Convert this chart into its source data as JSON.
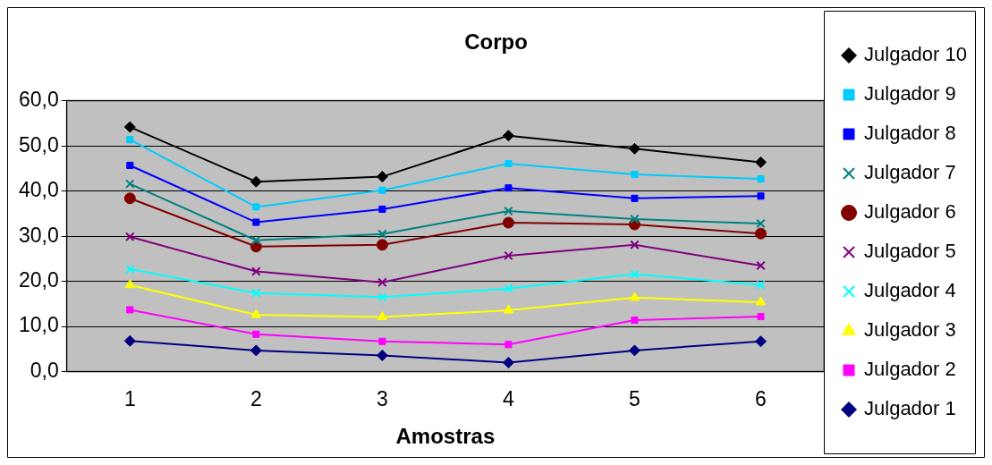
{
  "chart_data": {
    "type": "line",
    "title": "Corpo",
    "xlabel": "Amostras",
    "categories": [
      "1",
      "2",
      "3",
      "4",
      "5",
      "6"
    ],
    "ylim": [
      0,
      60
    ],
    "yticks": [
      {
        "value": 0,
        "label": "0,0"
      },
      {
        "value": 10,
        "label": "10,0"
      },
      {
        "value": 20,
        "label": "20,0"
      },
      {
        "value": 30,
        "label": "30,0"
      },
      {
        "value": 40,
        "label": "40,0"
      },
      {
        "value": 50,
        "label": "50,0"
      },
      {
        "value": 60,
        "label": "60,0"
      }
    ],
    "grid": "y",
    "legend": "right",
    "line_style": "solid",
    "series": [
      {
        "name": "Julgador 10",
        "color": "#000000",
        "marker": "diamond",
        "values": [
          54.2,
          42.1,
          43.2,
          52.3,
          49.4,
          46.4
        ]
      },
      {
        "name": "Julgador 9",
        "color": "#00ccff",
        "marker": "square",
        "values": [
          51.4,
          36.5,
          40.2,
          46.1,
          43.7,
          42.7
        ]
      },
      {
        "name": "Julgador 8",
        "color": "#0000ff",
        "marker": "square",
        "values": [
          45.7,
          33.1,
          36.0,
          40.7,
          38.4,
          38.9
        ]
      },
      {
        "name": "Julgador 7",
        "color": "#008080",
        "marker": "cross",
        "values": [
          41.6,
          29.1,
          30.5,
          35.6,
          33.8,
          32.8
        ]
      },
      {
        "name": "Julgador 6",
        "color": "#800000",
        "marker": "circle",
        "values": [
          38.4,
          27.7,
          28.1,
          33.0,
          32.6,
          30.6
        ]
      },
      {
        "name": "Julgador 5",
        "color": "#800080",
        "marker": "cross",
        "values": [
          29.9,
          22.2,
          19.8,
          25.7,
          28.1,
          23.5
        ]
      },
      {
        "name": "Julgador 4",
        "color": "#00ffff",
        "marker": "cross",
        "values": [
          22.7,
          17.4,
          16.5,
          18.4,
          21.6,
          19.2
        ]
      },
      {
        "name": "Julgador 3",
        "color": "#ffff00",
        "marker": "triangle",
        "values": [
          19.2,
          12.6,
          12.1,
          13.6,
          16.4,
          15.4
        ]
      },
      {
        "name": "Julgador 2",
        "color": "#ff00ff",
        "marker": "square",
        "values": [
          13.7,
          8.3,
          6.7,
          6.0,
          11.4,
          12.2
        ]
      },
      {
        "name": "Julgador 1",
        "color": "#000080",
        "marker": "diamond",
        "values": [
          6.8,
          4.7,
          3.6,
          2.0,
          4.7,
          6.7
        ]
      }
    ]
  }
}
